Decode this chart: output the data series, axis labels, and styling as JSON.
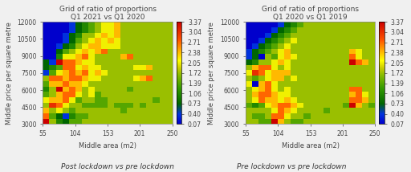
{
  "title1": "Grid of ratio of proportions",
  "subtitle1": "Q1 2021 vs Q1 2020",
  "title2": "Grid of ratio of proportions",
  "subtitle2": "Q1 2020 vs Q1 2019",
  "xlabel": "Middle area (m2)",
  "ylabel": "Middle price per square metre",
  "caption1": "Post lockdown vs pre lockdown",
  "caption2": "Pre lockdown vs pre lockdown",
  "xticks": [
    55,
    104,
    153,
    201,
    250
  ],
  "yticks": [
    3000,
    4500,
    6000,
    7500,
    9000,
    10500,
    12000
  ],
  "colorbar_ticks": [
    0.07,
    0.4,
    0.73,
    1.06,
    1.39,
    1.72,
    2.05,
    2.38,
    2.71,
    3.04,
    3.37
  ],
  "vmin": 0.07,
  "vmax": 3.37,
  "title_fontsize": 6.5,
  "axis_label_fontsize": 6.0,
  "tick_fontsize": 5.5,
  "caption_fontsize": 6.5,
  "colorbar_fontsize": 5.5,
  "bg_color": "#f0f0f0",
  "heatmap1": [
    [
      3.37,
      1.72,
      1.06,
      0.73,
      1.39,
      1.39,
      1.72,
      1.72,
      1.72,
      1.72,
      1.72,
      1.72,
      1.72,
      1.72,
      1.72,
      1.72,
      1.72,
      1.72,
      1.72,
      1.72
    ],
    [
      2.71,
      1.39,
      0.73,
      0.4,
      1.06,
      1.39,
      1.39,
      1.72,
      1.72,
      1.72,
      1.72,
      1.72,
      1.72,
      1.72,
      1.72,
      1.72,
      1.72,
      1.72,
      1.72,
      1.72
    ],
    [
      2.38,
      1.72,
      2.05,
      1.72,
      1.39,
      1.72,
      1.72,
      1.72,
      1.72,
      1.72,
      1.72,
      1.72,
      1.39,
      1.72,
      1.72,
      1.72,
      1.72,
      1.72,
      1.72,
      1.72
    ],
    [
      1.72,
      3.04,
      2.71,
      2.05,
      1.72,
      1.72,
      1.39,
      1.39,
      1.39,
      1.39,
      1.72,
      1.39,
      1.39,
      1.39,
      1.72,
      1.39,
      1.72,
      1.72,
      1.72,
      1.72
    ],
    [
      2.05,
      2.38,
      2.38,
      2.71,
      2.05,
      1.39,
      1.72,
      1.72,
      1.39,
      1.39,
      1.72,
      1.72,
      1.72,
      1.72,
      1.72,
      1.72,
      1.72,
      1.39,
      1.72,
      1.72
    ],
    [
      1.39,
      1.72,
      2.38,
      2.71,
      2.71,
      2.05,
      1.72,
      2.05,
      1.39,
      1.72,
      1.72,
      1.72,
      1.72,
      1.72,
      1.72,
      1.72,
      1.72,
      1.72,
      1.72,
      1.72
    ],
    [
      1.06,
      1.72,
      3.37,
      2.38,
      2.71,
      2.38,
      1.72,
      2.05,
      1.72,
      1.72,
      1.72,
      1.72,
      1.72,
      1.39,
      1.72,
      1.72,
      1.72,
      1.72,
      1.72,
      1.72
    ],
    [
      1.39,
      2.38,
      2.38,
      2.71,
      2.38,
      2.38,
      2.05,
      1.72,
      1.72,
      1.72,
      1.72,
      1.72,
      1.72,
      1.72,
      1.72,
      1.72,
      1.72,
      1.72,
      1.72,
      1.72
    ],
    [
      1.72,
      2.71,
      2.71,
      2.38,
      2.71,
      2.71,
      2.38,
      2.05,
      2.05,
      1.72,
      1.72,
      1.72,
      1.72,
      1.72,
      2.05,
      2.38,
      2.71,
      1.72,
      1.72,
      1.72
    ],
    [
      0.4,
      1.39,
      2.05,
      2.38,
      2.71,
      2.38,
      2.71,
      2.05,
      2.38,
      2.05,
      1.72,
      1.72,
      1.72,
      1.72,
      1.72,
      1.72,
      1.72,
      1.72,
      1.72,
      1.72
    ],
    [
      0.73,
      1.06,
      1.39,
      2.71,
      2.71,
      2.05,
      2.38,
      2.05,
      2.05,
      1.72,
      1.72,
      1.72,
      1.72,
      1.72,
      2.05,
      2.05,
      2.38,
      1.72,
      1.72,
      1.72
    ],
    [
      0.73,
      0.4,
      3.37,
      2.71,
      2.71,
      2.38,
      2.05,
      2.05,
      1.72,
      1.72,
      1.72,
      1.72,
      1.72,
      1.72,
      1.72,
      1.72,
      1.72,
      1.72,
      1.72,
      1.72
    ],
    [
      0.07,
      0.07,
      1.06,
      2.05,
      2.05,
      2.38,
      2.71,
      2.05,
      1.72,
      1.72,
      1.72,
      1.72,
      2.38,
      2.71,
      1.72,
      1.72,
      1.72,
      1.72,
      1.72,
      1.72
    ],
    [
      0.07,
      0.07,
      0.73,
      1.39,
      1.72,
      2.05,
      2.38,
      2.05,
      2.38,
      2.71,
      1.72,
      1.72,
      1.72,
      1.72,
      1.72,
      1.72,
      1.72,
      1.72,
      1.72,
      1.72
    ],
    [
      0.07,
      0.07,
      0.4,
      0.73,
      1.06,
      1.72,
      2.05,
      2.38,
      2.38,
      2.05,
      2.05,
      2.05,
      1.72,
      1.72,
      1.72,
      1.72,
      1.72,
      1.72,
      1.72,
      1.72
    ],
    [
      0.07,
      0.07,
      0.07,
      0.4,
      0.73,
      1.39,
      1.72,
      2.05,
      2.38,
      2.05,
      2.38,
      2.05,
      1.72,
      1.72,
      1.72,
      1.72,
      1.72,
      1.72,
      1.72,
      1.72
    ],
    [
      0.07,
      0.07,
      0.07,
      0.4,
      0.73,
      1.06,
      1.72,
      1.72,
      2.05,
      2.38,
      2.05,
      2.38,
      1.72,
      1.72,
      1.72,
      1.72,
      1.72,
      1.72,
      1.72,
      1.72
    ],
    [
      0.07,
      0.07,
      0.07,
      0.07,
      0.4,
      0.73,
      1.06,
      1.39,
      1.72,
      2.05,
      2.05,
      2.38,
      1.72,
      1.72,
      1.72,
      1.72,
      1.72,
      1.72,
      1.72,
      1.72
    ],
    [
      0.07,
      0.07,
      0.07,
      0.07,
      0.4,
      0.73,
      1.06,
      1.39,
      1.72,
      2.05,
      2.05,
      2.38,
      1.72,
      1.72,
      1.72,
      1.72,
      1.72,
      1.72,
      1.72,
      1.72
    ]
  ],
  "heatmap2": [
    [
      1.72,
      1.72,
      1.39,
      1.39,
      3.37,
      2.38,
      1.72,
      1.39,
      1.39,
      1.72,
      1.72,
      1.72,
      1.72,
      1.72,
      1.72,
      1.72,
      1.72,
      1.72,
      1.72,
      1.72
    ],
    [
      1.72,
      1.39,
      1.39,
      1.72,
      2.71,
      2.71,
      2.05,
      1.72,
      1.72,
      1.39,
      1.72,
      1.72,
      1.72,
      1.72,
      1.72,
      1.72,
      1.72,
      1.72,
      1.72,
      1.72
    ],
    [
      1.72,
      1.72,
      1.72,
      1.72,
      2.05,
      2.71,
      2.38,
      2.05,
      1.72,
      1.72,
      1.72,
      1.72,
      1.39,
      1.72,
      1.72,
      1.72,
      1.72,
      1.72,
      1.72,
      1.72
    ],
    [
      1.39,
      1.06,
      1.39,
      2.05,
      2.38,
      2.71,
      2.71,
      2.38,
      2.05,
      1.72,
      1.72,
      1.72,
      1.72,
      1.72,
      1.72,
      1.39,
      3.37,
      2.38,
      1.72,
      1.39
    ],
    [
      1.72,
      2.05,
      2.71,
      2.38,
      2.38,
      2.05,
      2.38,
      2.05,
      1.72,
      1.72,
      1.72,
      1.72,
      1.72,
      1.72,
      1.72,
      1.72,
      2.71,
      2.71,
      2.38,
      1.72
    ],
    [
      1.72,
      2.38,
      2.71,
      2.71,
      2.38,
      2.05,
      2.05,
      1.72,
      1.72,
      1.72,
      1.72,
      1.72,
      1.72,
      1.72,
      1.72,
      1.72,
      2.38,
      2.71,
      2.05,
      1.72
    ],
    [
      1.72,
      2.05,
      2.38,
      2.71,
      2.05,
      1.72,
      2.05,
      1.72,
      1.72,
      1.72,
      1.72,
      1.72,
      1.72,
      1.72,
      1.72,
      1.72,
      2.71,
      2.71,
      1.72,
      1.72
    ],
    [
      2.05,
      0.07,
      2.38,
      2.71,
      2.05,
      1.72,
      1.72,
      1.72,
      1.72,
      1.72,
      1.72,
      1.72,
      1.72,
      1.72,
      1.72,
      1.72,
      1.72,
      1.72,
      1.72,
      1.72
    ],
    [
      1.72,
      1.39,
      1.72,
      2.05,
      2.38,
      2.38,
      1.72,
      2.05,
      1.72,
      1.72,
      1.72,
      1.72,
      1.72,
      1.72,
      1.72,
      1.72,
      1.72,
      1.72,
      1.72,
      1.72
    ],
    [
      2.05,
      3.04,
      2.71,
      2.05,
      2.38,
      2.38,
      2.38,
      1.72,
      1.72,
      1.72,
      1.72,
      1.72,
      1.72,
      1.72,
      1.72,
      1.72,
      1.72,
      1.72,
      1.72,
      1.72
    ],
    [
      1.72,
      2.38,
      2.71,
      2.71,
      2.05,
      1.72,
      2.05,
      1.72,
      1.72,
      1.72,
      1.72,
      1.72,
      1.72,
      1.72,
      1.72,
      1.72,
      1.72,
      1.72,
      1.72,
      1.72
    ],
    [
      0.73,
      1.06,
      1.72,
      1.72,
      2.05,
      2.38,
      2.05,
      1.72,
      1.72,
      1.72,
      1.72,
      1.72,
      1.72,
      1.72,
      1.72,
      1.72,
      3.37,
      2.71,
      2.38,
      1.72
    ],
    [
      0.4,
      0.73,
      0.07,
      1.72,
      1.39,
      2.05,
      2.38,
      2.05,
      1.72,
      1.72,
      1.72,
      1.72,
      1.72,
      1.72,
      1.72,
      1.72,
      2.71,
      2.05,
      1.72,
      1.72
    ],
    [
      0.4,
      0.73,
      1.06,
      1.39,
      1.72,
      2.05,
      2.38,
      1.72,
      1.72,
      1.72,
      1.72,
      1.72,
      1.72,
      1.72,
      1.72,
      1.72,
      2.38,
      2.05,
      1.72,
      1.72
    ],
    [
      0.07,
      0.4,
      0.73,
      1.06,
      1.39,
      1.72,
      2.05,
      1.72,
      1.72,
      1.72,
      1.72,
      1.72,
      1.72,
      1.72,
      1.72,
      1.72,
      1.72,
      1.72,
      1.72,
      1.72
    ],
    [
      0.07,
      0.07,
      0.4,
      0.73,
      1.06,
      1.39,
      1.72,
      2.05,
      1.72,
      1.72,
      1.72,
      1.72,
      1.72,
      1.72,
      1.72,
      1.72,
      1.72,
      1.72,
      1.72,
      1.72
    ],
    [
      0.07,
      0.07,
      0.07,
      0.4,
      0.73,
      1.06,
      1.39,
      1.72,
      1.72,
      1.72,
      1.72,
      1.72,
      1.72,
      1.72,
      1.72,
      1.72,
      1.72,
      1.72,
      1.72,
      1.72
    ],
    [
      0.07,
      0.07,
      0.07,
      0.07,
      0.4,
      0.73,
      1.06,
      1.39,
      1.72,
      1.72,
      1.72,
      1.72,
      1.72,
      1.72,
      1.72,
      1.72,
      1.72,
      1.72,
      1.72,
      1.72
    ],
    [
      0.07,
      0.07,
      0.07,
      0.07,
      0.07,
      0.4,
      0.73,
      1.06,
      1.39,
      1.72,
      1.72,
      1.72,
      1.72,
      1.72,
      1.72,
      1.72,
      1.72,
      1.72,
      1.72,
      1.72
    ]
  ]
}
